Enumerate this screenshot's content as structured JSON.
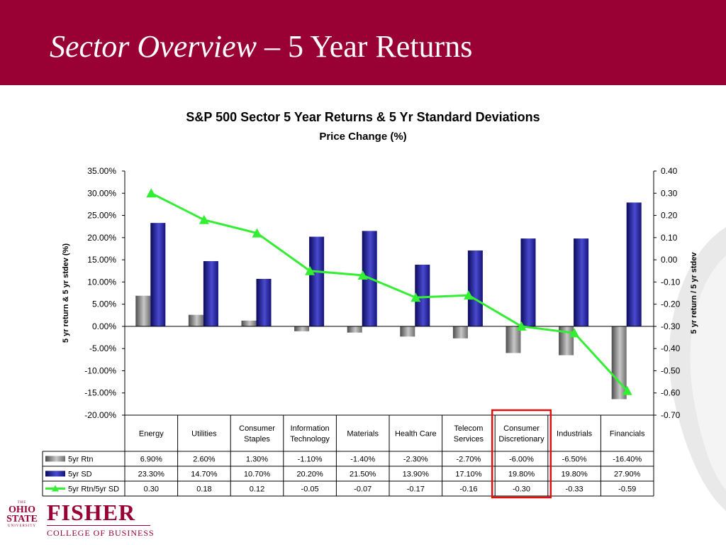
{
  "slide": {
    "title_italic": "Sector Overview",
    "title_rest": " – 5 Year Returns"
  },
  "chart_data": {
    "type": "bar",
    "title": "S&P 500 Sector 5 Year Returns & 5 Yr Standard Deviations",
    "subtitle": "Price Change (%)",
    "ylabel": "5 yr return & 5 yr stdev (%)",
    "y2label": "5 yr return / 5 yr stdev",
    "ylim": [
      -20,
      35
    ],
    "y2lim": [
      -0.7,
      0.4
    ],
    "yticks": [
      "35.00%",
      "30.00%",
      "25.00%",
      "20.00%",
      "15.00%",
      "10.00%",
      "5.00%",
      "0.00%",
      "-5.00%",
      "-10.00%",
      "-15.00%",
      "-20.00%"
    ],
    "y2ticks": [
      "0.40",
      "0.30",
      "0.20",
      "0.10",
      "0.00",
      "-0.10",
      "-0.20",
      "-0.30",
      "-0.40",
      "-0.50",
      "-0.60",
      "-0.70"
    ],
    "categories": [
      [
        "Energy"
      ],
      [
        "Utilities"
      ],
      [
        "Consumer",
        "Staples"
      ],
      [
        "Information",
        "Technology"
      ],
      [
        "Materials"
      ],
      [
        "Health Care"
      ],
      [
        "Telecom",
        "Services"
      ],
      [
        "Consumer",
        "Discretionary"
      ],
      [
        "Industrials"
      ],
      [
        "Financials"
      ]
    ],
    "highlight_index": 7,
    "series": [
      {
        "name": "5yr Rtn",
        "kind": "bar",
        "axis": "left",
        "color": "#808080",
        "values": [
          6.9,
          2.6,
          1.3,
          -1.1,
          -1.4,
          -2.3,
          -2.7,
          -6.0,
          -6.5,
          -16.4
        ],
        "labels": [
          "6.90%",
          "2.60%",
          "1.30%",
          "-1.10%",
          "-1.40%",
          "-2.30%",
          "-2.70%",
          "-6.00%",
          "-6.50%",
          "-16.40%"
        ]
      },
      {
        "name": "5yr SD",
        "kind": "bar",
        "axis": "left",
        "color": "#1a1a8c",
        "values": [
          23.3,
          14.7,
          10.7,
          20.2,
          21.5,
          13.9,
          17.1,
          19.8,
          19.8,
          27.9
        ],
        "labels": [
          "23.30%",
          "14.70%",
          "10.70%",
          "20.20%",
          "21.50%",
          "13.90%",
          "17.10%",
          "19.80%",
          "19.80%",
          "27.90%"
        ]
      },
      {
        "name": "5yr Rtn/5yr SD",
        "kind": "line",
        "axis": "right",
        "color": "#33ee33",
        "values": [
          0.3,
          0.18,
          0.12,
          -0.05,
          -0.07,
          -0.17,
          -0.16,
          -0.3,
          -0.33,
          -0.59
        ],
        "labels": [
          "0.30",
          "0.18",
          "0.12",
          "-0.05",
          "-0.07",
          "-0.17",
          "-0.16",
          "-0.30",
          "-0.33",
          "-0.59"
        ]
      }
    ]
  },
  "footer": {
    "seal_top": "THE",
    "seal_line1": "OHIO",
    "seal_line2": "STATE",
    "seal_bottom": "UNIVERSITY",
    "brand": "FISHER",
    "brand_sub": "COLLEGE OF BUSINESS"
  }
}
